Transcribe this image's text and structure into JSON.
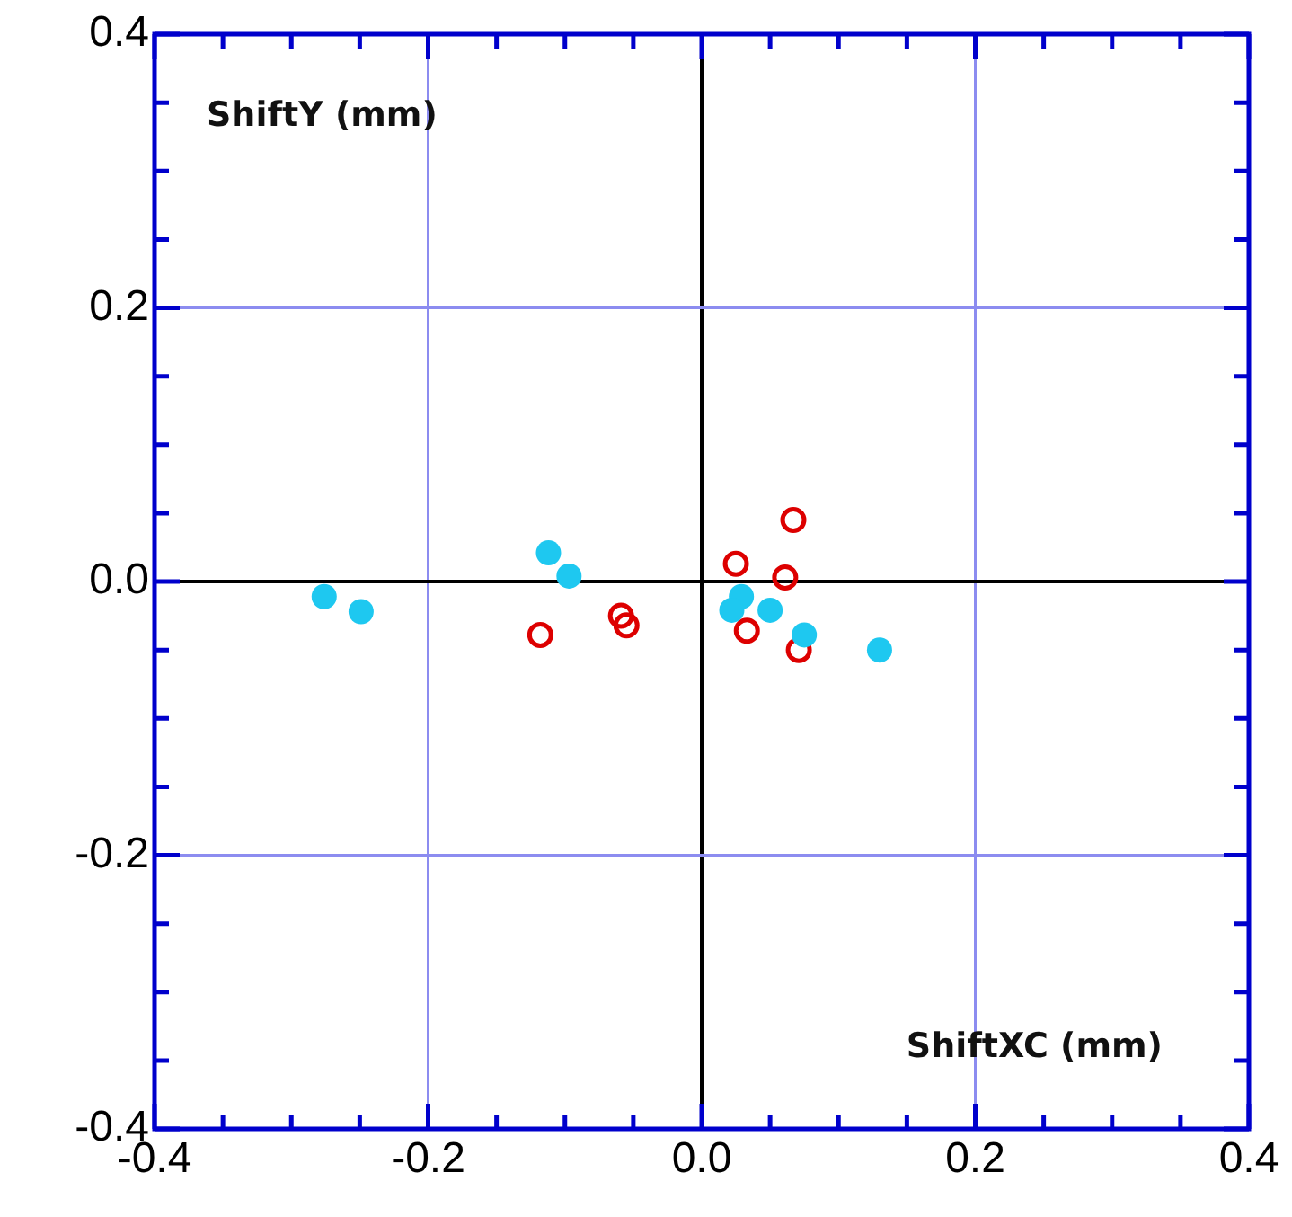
{
  "chart_data": {
    "type": "scatter",
    "xlabel": "ShiftXC (mm)",
    "ylabel": "ShiftY (mm)",
    "xlim": [
      -0.4,
      0.4
    ],
    "ylim": [
      -0.4,
      0.4
    ],
    "xticks": [
      -0.4,
      {
        "value": -0.35,
        "label": null
      },
      {
        "value": -0.3,
        "label": null
      },
      {
        "value": -0.25,
        "label": null
      },
      {
        "value": -0.2,
        "label": "-0.2"
      },
      {
        "value": -0.15,
        "label": null
      },
      {
        "value": -0.1,
        "label": null
      },
      {
        "value": -0.05,
        "label": null
      },
      {
        "value": 0,
        "label": "0.0"
      },
      {
        "value": 0.05,
        "label": null
      },
      {
        "value": 0.1,
        "label": null
      },
      {
        "value": 0.15,
        "label": null
      },
      0.2,
      {
        "value": 0.25,
        "label": null
      },
      {
        "value": 0.3,
        "label": null
      },
      {
        "value": 0.35,
        "label": null
      },
      0.4
    ],
    "yticks": [
      -0.4,
      {
        "value": -0.35,
        "label": null
      },
      {
        "value": -0.3,
        "label": null
      },
      {
        "value": -0.25,
        "label": null
      },
      {
        "value": -0.2,
        "label": "-0.2"
      },
      {
        "value": -0.15,
        "label": null
      },
      {
        "value": -0.1,
        "label": null
      },
      {
        "value": -0.05,
        "label": null
      },
      {
        "value": 0,
        "label": "0.0"
      },
      {
        "value": 0.05,
        "label": null
      },
      {
        "value": 0.1,
        "label": null
      },
      {
        "value": 0.15,
        "label": null
      },
      0.2,
      {
        "value": 0.25,
        "label": null
      },
      {
        "value": 0.3,
        "label": null
      },
      {
        "value": 0.35,
        "label": null
      },
      0.4
    ],
    "grid": true,
    "legend": false,
    "marker": "circle",
    "series": [
      {
        "color": "#1ec8f0",
        "x": [
          -0.276,
          -0.249,
          -0.112,
          -0.097,
          0.029,
          0.022,
          0.05,
          0.075,
          0.13
        ],
        "values": [
          -0.011,
          -0.022,
          0.021,
          0.004,
          -0.011,
          -0.021,
          -0.021,
          -0.039,
          -0.05
        ]
      },
      {
        "color": "#dd0000",
        "x": [
          -0.118,
          -0.059,
          -0.055,
          0.025,
          0.067,
          0.061,
          0.033,
          0.071
        ],
        "values": [
          -0.039,
          -0.025,
          -0.032,
          0.013,
          0.045,
          0.003,
          -0.036,
          -0.05
        ]
      }
    ]
  }
}
